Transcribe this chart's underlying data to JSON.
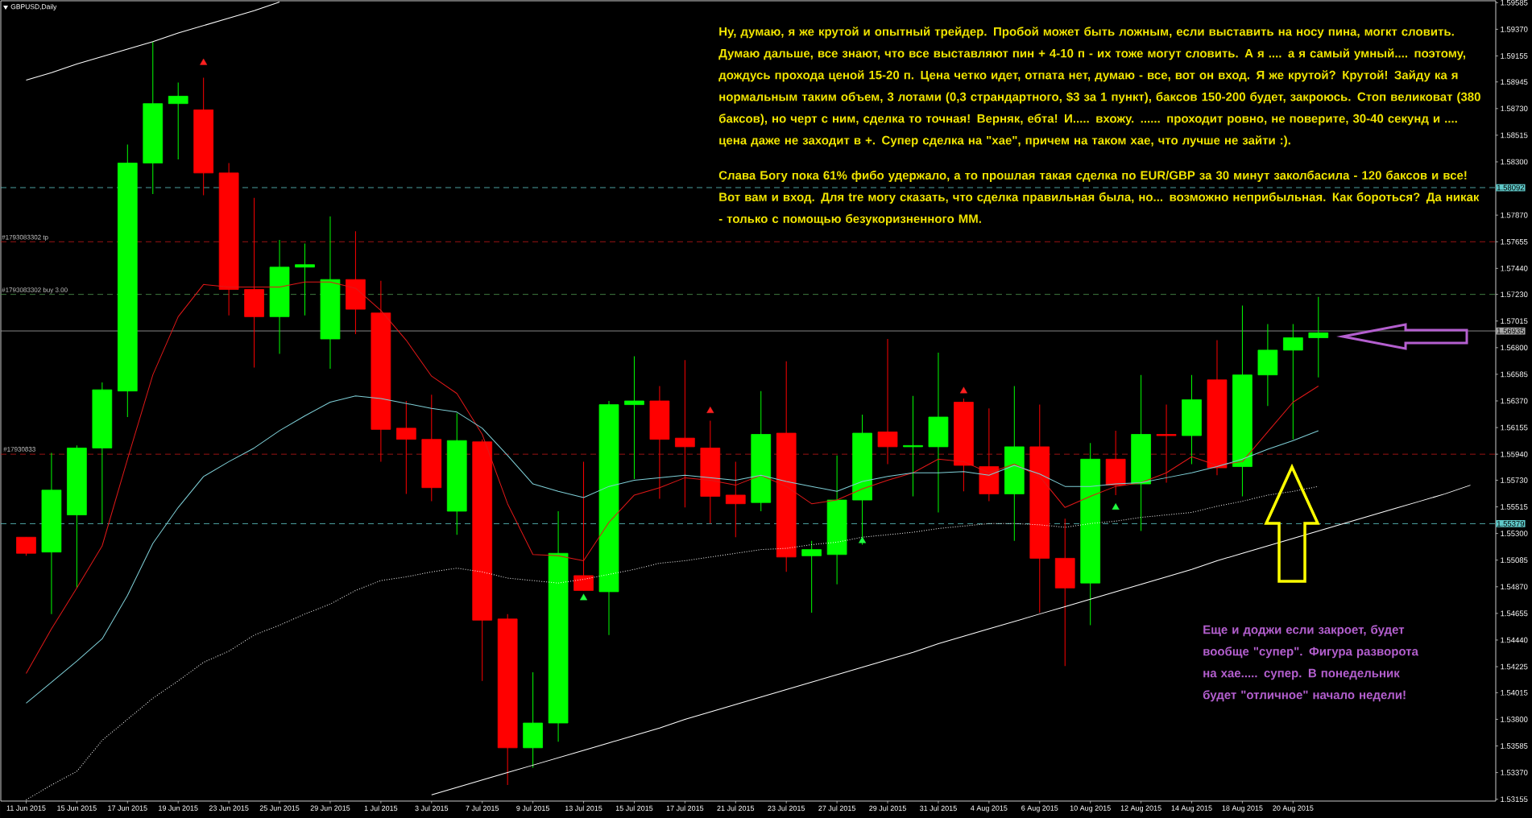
{
  "chart_data": {
    "type": "candlestick",
    "title": "GBPUSD,Daily",
    "categories": [
      "11 Jun 2015",
      null,
      "15 Jun 2015",
      null,
      "17 Jun 2015",
      null,
      "19 Jun 2015",
      null,
      "23 Jun 2015",
      null,
      "25 Jun 2015",
      null,
      "29 Jun 2015",
      null,
      "1 Jul 2015",
      null,
      "3 Jul 2015",
      null,
      "7 Jul 2015",
      null,
      "9 Jul 2015",
      null,
      "13 Jul 2015",
      null,
      "15 Jul 2015",
      null,
      "17 Jul 2015",
      null,
      "21 Jul 2015",
      null,
      "23 Jul 2015",
      null,
      "27 Jul 2015",
      null,
      "29 Jul 2015",
      null,
      "31 Jul 2015",
      null,
      "4 Aug 2015",
      null,
      "6 Aug 2015",
      null,
      "10 Aug 2015",
      null,
      "12 Aug 2015",
      null,
      "14 Aug 2015",
      null,
      "18 Aug 2015",
      null,
      "20 Aug 2015",
      null,
      null,
      null,
      null,
      null,
      null,
      null
    ],
    "ohlc": [
      [
        1.5527,
        1.5527,
        1.5512,
        1.5514
      ],
      [
        1.5515,
        1.5595,
        1.5465,
        1.5565
      ],
      [
        1.5545,
        1.5601,
        1.5486,
        1.5599
      ],
      [
        1.5599,
        1.5652,
        1.5538,
        1.5646
      ],
      [
        1.5645,
        1.5844,
        1.5624,
        1.5829
      ],
      [
        1.5829,
        1.5927,
        1.5804,
        1.5877
      ],
      [
        1.5877,
        1.5894,
        1.5832,
        1.5883
      ],
      [
        1.5872,
        1.5898,
        1.5803,
        1.5821
      ],
      [
        1.5821,
        1.5829,
        1.5706,
        1.5727
      ],
      [
        1.5727,
        1.5801,
        1.5664,
        1.5705
      ],
      [
        1.5705,
        1.5767,
        1.5675,
        1.5745
      ],
      [
        1.5745,
        1.5764,
        1.5706,
        1.5747
      ],
      [
        1.5687,
        1.5786,
        1.5663,
        1.5735
      ],
      [
        1.5735,
        1.5774,
        1.5691,
        1.5711
      ],
      [
        1.5708,
        1.5734,
        1.5588,
        1.5614
      ],
      [
        1.5615,
        1.5637,
        1.5562,
        1.5606
      ],
      [
        1.5606,
        1.5642,
        1.5556,
        1.5567
      ],
      [
        1.5548,
        1.5627,
        1.5529,
        1.5605
      ],
      [
        1.5604,
        1.5606,
        1.5411,
        1.546
      ],
      [
        1.5461,
        1.5465,
        1.5327,
        1.5357
      ],
      [
        1.5357,
        1.5418,
        1.5341,
        1.5377
      ],
      [
        1.5377,
        1.5548,
        1.5362,
        1.5514
      ],
      [
        1.5496,
        1.5588,
        1.5484,
        1.5484
      ],
      [
        1.5483,
        1.5637,
        1.5448,
        1.5634
      ],
      [
        1.5634,
        1.5673,
        1.5574,
        1.5637
      ],
      [
        1.5637,
        1.5649,
        1.5558,
        1.5606
      ],
      [
        1.5607,
        1.567,
        1.5551,
        1.56
      ],
      [
        1.5599,
        1.5621,
        1.5538,
        1.556
      ],
      [
        1.5561,
        1.5588,
        1.5527,
        1.5554
      ],
      [
        1.5555,
        1.5645,
        1.5548,
        1.561
      ],
      [
        1.5611,
        1.5669,
        1.5499,
        1.5511
      ],
      [
        1.5512,
        1.5524,
        1.5466,
        1.5517
      ],
      [
        1.5513,
        1.5593,
        1.5489,
        1.5557
      ],
      [
        1.5557,
        1.5626,
        1.5521,
        1.5611
      ],
      [
        1.5612,
        1.5687,
        1.5586,
        1.56
      ],
      [
        1.56,
        1.5641,
        1.556,
        1.5601
      ],
      [
        1.56,
        1.5676,
        1.5547,
        1.5624
      ],
      [
        1.5636,
        1.5639,
        1.5564,
        1.5585
      ],
      [
        1.5584,
        1.5631,
        1.5556,
        1.5562
      ],
      [
        1.5562,
        1.5649,
        1.5524,
        1.56
      ],
      [
        1.56,
        1.5634,
        1.5466,
        1.551
      ],
      [
        1.551,
        1.5542,
        1.5423,
        1.5486
      ],
      [
        1.549,
        1.5603,
        1.5456,
        1.559
      ],
      [
        1.559,
        1.5613,
        1.5561,
        1.5569
      ],
      [
        1.557,
        1.5658,
        1.5532,
        1.561
      ],
      [
        1.561,
        1.5634,
        1.5571,
        1.5609
      ],
      [
        1.5609,
        1.5658,
        1.5586,
        1.5638
      ],
      [
        1.5654,
        1.5686,
        1.5577,
        1.5583
      ],
      [
        1.5584,
        1.5714,
        1.556,
        1.5658
      ],
      [
        1.5658,
        1.5699,
        1.5633,
        1.5678
      ],
      [
        1.5678,
        1.5699,
        1.5606,
        1.5688
      ],
      [
        1.5688,
        1.5721,
        1.5656,
        1.5692
      ],
      null,
      null,
      null,
      null,
      null,
      null
    ],
    "colors": [
      "#ff0000",
      "#00ff00",
      "#00ff00",
      "#00ff00",
      "#00ff00",
      "#00ff00",
      "#00ff00",
      "#ff0000",
      "#ff0000",
      "#ff0000",
      "#00ff00",
      "#00ff00",
      "#00ff00",
      "#ff0000",
      "#ff0000",
      "#ff0000",
      "#ff0000",
      "#00ff00",
      "#ff0000",
      "#ff0000",
      "#00ff00",
      "#00ff00",
      "#ff0000",
      "#00ff00",
      "#00ff00",
      "#ff0000",
      "#ff0000",
      "#ff0000",
      "#ff0000",
      "#00ff00",
      "#ff0000",
      "#00ff00",
      "#00ff00",
      "#00ff00",
      "#ff0000",
      "#00ff00",
      "#00ff00",
      "#ff0000",
      "#ff0000",
      "#00ff00",
      "#ff0000",
      "#ff0000",
      "#00ff00",
      "#ff0000",
      "#00ff00",
      "#ff0000",
      "#00ff00",
      "#ff0000",
      "#00ff00",
      "#00ff00",
      "#00ff00",
      "#00ff00",
      null,
      null,
      null,
      null,
      null,
      null
    ],
    "series": [
      {
        "type": "line",
        "color": "#e01818",
        "values": [
          1.5417,
          1.5453,
          1.5486,
          1.552,
          1.559,
          1.5658,
          1.5705,
          1.5731,
          1.5729,
          1.5729,
          1.5729,
          1.5733,
          1.5733,
          1.5728,
          1.571,
          1.5686,
          1.5657,
          1.5643,
          1.561,
          1.5554,
          1.5513,
          1.5512,
          1.5508,
          1.5539,
          1.5561,
          1.5567,
          1.5575,
          1.5573,
          1.5569,
          1.5577,
          1.5568,
          1.5554,
          1.5557,
          1.5566,
          1.5573,
          1.5579,
          1.559,
          1.5588,
          1.5579,
          1.5586,
          1.5576,
          1.5551,
          1.556,
          1.5568,
          1.5571,
          1.5579,
          1.5592,
          1.5585,
          1.5588,
          1.5612,
          1.5636,
          1.5649,
          null,
          null,
          null,
          null,
          null,
          null
        ]
      },
      {
        "type": "line",
        "color": "#7fd0d8",
        "values": [
          1.5393,
          1.541,
          1.5427,
          1.5445,
          1.548,
          1.5522,
          1.5551,
          1.5576,
          1.5588,
          1.5599,
          1.5613,
          1.5625,
          1.5636,
          1.5641,
          1.5639,
          1.5635,
          1.5631,
          1.5628,
          1.5615,
          1.5593,
          1.557,
          1.5564,
          1.5559,
          1.5568,
          1.5573,
          1.5575,
          1.5577,
          1.5575,
          1.5573,
          1.5577,
          1.5572,
          1.5568,
          1.5564,
          1.5572,
          1.5576,
          1.5579,
          1.5579,
          1.558,
          1.5577,
          1.5585,
          1.5578,
          1.5568,
          1.5568,
          1.557,
          1.5571,
          1.5575,
          1.5579,
          1.5584,
          1.559,
          1.5598,
          1.5605,
          1.5613,
          null,
          null,
          null,
          null,
          null,
          null
        ]
      },
      {
        "type": "line",
        "color": "#ffffff",
        "line_style": "dotted",
        "values": [
          1.5315,
          1.5327,
          1.5338,
          1.5363,
          1.538,
          1.5397,
          1.5411,
          1.5426,
          1.5435,
          1.5448,
          1.5456,
          1.5465,
          1.5473,
          1.5484,
          1.5492,
          1.5495,
          1.5499,
          1.5502,
          1.5499,
          1.5494,
          1.5492,
          1.549,
          1.5493,
          1.5497,
          1.5501,
          1.5506,
          1.5508,
          1.5511,
          1.5514,
          1.5517,
          1.5518,
          1.5521,
          1.5523,
          1.5527,
          1.5529,
          1.5531,
          1.5534,
          1.5536,
          1.5538,
          1.5538,
          1.5537,
          1.5535,
          1.5538,
          1.554,
          1.5543,
          1.5545,
          1.5547,
          1.5552,
          1.5556,
          1.5561,
          1.5564,
          1.5568,
          null,
          null,
          null,
          null,
          null,
          null
        ]
      },
      {
        "type": "line",
        "color": "#ffffff",
        "values": [
          1.5896,
          1.5902,
          1.5909,
          1.5915,
          1.5921,
          1.5927,
          1.5934,
          1.594,
          1.5946,
          1.5952,
          1.5959,
          null,
          null,
          null,
          null,
          null,
          null,
          null,
          null,
          null,
          null,
          null,
          null,
          null,
          null,
          null,
          null,
          null,
          null,
          null,
          null,
          null,
          null,
          null,
          null,
          null,
          null,
          null,
          null,
          null,
          null,
          null,
          null,
          null,
          null,
          null,
          null,
          null,
          null,
          null,
          null,
          null,
          null,
          null,
          null,
          null,
          null,
          null
        ]
      },
      {
        "type": "line",
        "color": "#ffffff",
        "values": [
          null,
          null,
          null,
          null,
          null,
          null,
          null,
          null,
          null,
          null,
          null,
          null,
          null,
          null,
          null,
          null,
          1.5319,
          1.5325,
          1.5331,
          1.5337,
          1.5343,
          1.5349,
          1.5355,
          1.5361,
          1.5367,
          1.5373,
          1.538,
          1.5386,
          1.5392,
          1.5398,
          1.5404,
          1.541,
          1.5416,
          1.5422,
          1.5428,
          1.5434,
          1.5441,
          1.5447,
          1.5453,
          1.5459,
          1.5465,
          1.5471,
          1.5477,
          1.5483,
          1.5489,
          1.5495,
          1.5501,
          1.5508,
          1.5514,
          1.552,
          1.5526,
          1.5532,
          1.5538,
          1.5544,
          1.555,
          1.5556,
          1.5562,
          1.5569
        ]
      },
      {
        "type": "scatter",
        "color": "#ff2020",
        "marker": "triangle",
        "values": [
          null,
          null,
          null,
          null,
          null,
          null,
          null,
          1.591,
          null,
          null,
          null,
          null,
          null,
          null,
          null,
          null,
          null,
          null,
          null,
          null,
          null,
          null,
          null,
          null,
          null,
          null,
          null,
          1.5629,
          null,
          null,
          null,
          null,
          null,
          null,
          null,
          null,
          null,
          1.5645,
          null,
          null,
          null,
          null,
          null,
          null,
          null,
          null,
          null,
          null,
          null,
          null,
          null,
          null,
          null,
          null,
          null,
          null,
          null,
          null
        ]
      },
      {
        "type": "scatter",
        "color": "#20ff40",
        "marker": "triangle",
        "values": [
          null,
          null,
          null,
          null,
          null,
          null,
          null,
          null,
          null,
          null,
          null,
          null,
          null,
          null,
          null,
          null,
          null,
          null,
          null,
          null,
          null,
          null,
          1.5478,
          null,
          null,
          null,
          null,
          null,
          null,
          null,
          null,
          null,
          null,
          1.5524,
          null,
          null,
          null,
          null,
          null,
          null,
          null,
          null,
          null,
          1.5551,
          null,
          null,
          null,
          null,
          null,
          null,
          null,
          null,
          null,
          null,
          null,
          null,
          null,
          null
        ]
      }
    ],
    "ylim": [
      1.5314,
      1.596
    ],
    "yticks": [
      1.59585,
      {
        "value": 1.5937,
        "label": "1.59370"
      },
      1.59155,
      1.58945,
      {
        "value": 1.5873,
        "label": "1.58730"
      },
      1.58515,
      {
        "value": 1.583,
        "label": "1.58300"
      },
      {
        "value": 1.5787,
        "label": "1.57870"
      },
      1.57655,
      {
        "value": 1.5744,
        "label": "1.57440"
      },
      {
        "value": 1.5723,
        "label": "1.57230"
      },
      1.57015,
      {
        "value": 1.568,
        "label": "1.56800"
      },
      1.56585,
      {
        "value": 1.5637,
        "label": "1.56370"
      },
      1.56155,
      {
        "value": 1.5594,
        "label": "1.55940"
      },
      {
        "value": 1.5573,
        "label": "1.55730"
      },
      1.55515,
      {
        "value": 1.553,
        "label": "1.55300"
      },
      1.55085,
      {
        "value": 1.5487,
        "label": "1.54870"
      },
      1.54655,
      {
        "value": 1.5444,
        "label": "1.54440"
      },
      1.54225,
      1.54015,
      {
        "value": 1.538,
        "label": "1.53800"
      },
      1.53585,
      {
        "value": 1.5337,
        "label": "1.53370"
      },
      1.53155
    ],
    "ref_lines": [
      {
        "axis": "y",
        "value": 1.58092,
        "label": "1.58092",
        "color": "#5fc8c8",
        "line_style": "dashed"
      },
      {
        "axis": "y",
        "value": 1.57655,
        "label": "#1793083302 tp",
        "color": "#c01818",
        "line_style": "dashed"
      },
      {
        "axis": "y",
        "value": 1.5723,
        "label": "#1793083302 buy 3.00",
        "color": "#4f9a4f",
        "line_style": "dashed"
      },
      {
        "axis": "y",
        "value": 1.56935,
        "label": "1.56935",
        "color": "#a8a8a8",
        "line_style": "solid"
      },
      {
        "axis": "y",
        "value": 1.5594,
        "color": "#c01818",
        "line_style": "dashed"
      },
      {
        "axis": "y",
        "value": 1.55379,
        "label": "1.55379",
        "color": "#5fc8c8",
        "line_style": "dashed"
      }
    ],
    "annotations": [
      "Ну, думаю, я же крутой и опытный трейдер. Пробой может быть ложным, если выставить на носу пина, могкт словить. Думаю дальше, все знают, что все выставляют пин + 4-10 п - их тоже могут словить. А я .... а я самый умный.... поэтому, дождусь прохода ценой 15-20 п. Цена четко идет, отпата нет, думаю - все, вот он вход. Я же крутой? Крутой! Зайду ка я нормальным таким объем, 3 лотами (0,3 страндартного, $3 за 1 пункт), баксов 150-200 будет, закроюсь. Стоп великоват (380 баксов), но черт с ним, сделка то точная! Верняк, ебта! И..... вхожу. ...... проходит ровно, не поверите, 30-40 секунд и .... цена даже не заходит в +. Супер сделка на \"хае\", причем на таком хае, что лучше не зайти :).",
      "Слава Богу пока 61% фибо удержало, а то прошлая такая сделка по EUR/GBP за 30 минут заколбасила - 120 баксов и все! Вот вам и вход. Для tre могу сказать, что сделка правильная была, но... возможно неприбыльная. Как бороться? Да никак - только с помощью безукоризненного ММ.",
      "Еще и доджи если закроет, будет вообще \"супер\". Фигура разворота на хае..... супер. В понедельник будет \"отличное\" начало недели!",
      "#17930833"
    ]
  }
}
